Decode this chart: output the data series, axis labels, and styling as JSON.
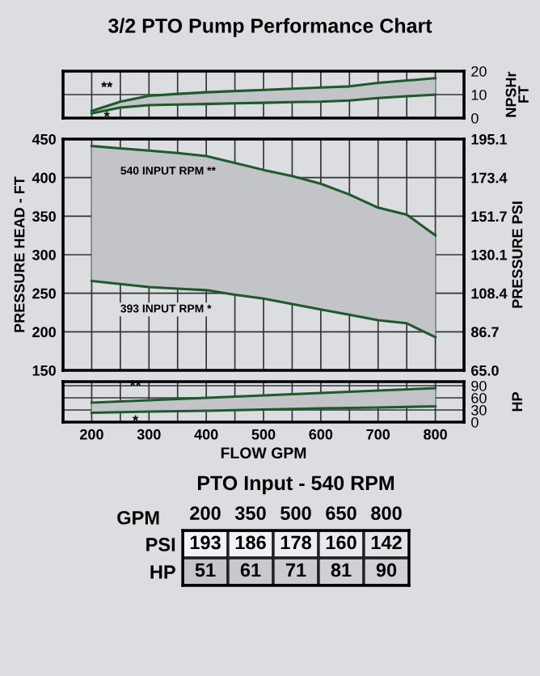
{
  "chart_data": [
    {
      "type": "line",
      "title": "3/2 PTO Pump Performance Chart",
      "ylabel": "NPSHr\nFT",
      "x": [
        200,
        250,
        300,
        350,
        400,
        450,
        500,
        550,
        600,
        650,
        700,
        750,
        800
      ],
      "xlim": [
        150,
        850
      ],
      "xticks": [
        200,
        {
          "value": 250,
          "label": null
        },
        300,
        {
          "value": 350,
          "label": null
        },
        400,
        {
          "value": 450,
          "label": null
        },
        500,
        {
          "value": 550,
          "label": null
        },
        600,
        {
          "value": 650,
          "label": null
        },
        700,
        {
          "value": 750,
          "label": null
        },
        800
      ],
      "ylim": [
        0,
        20
      ],
      "yticks": [
        0,
        10,
        20
      ],
      "grid": true,
      "tick_labels": "y",
      "series": [
        {
          "name": "**",
          "color": "#1f5a2e",
          "values": [
            3,
            7,
            9.5,
            10.3,
            11,
            11.5,
            12,
            12.5,
            13,
            13.5,
            15,
            16,
            17
          ],
          "lower": [
            2,
            4.5,
            5.5,
            5.8,
            6,
            6.3,
            6.5,
            6.8,
            7,
            7.5,
            8.5,
            9.3,
            10
          ],
          "upper": [
            3,
            7,
            9.5,
            10.3,
            11,
            11.5,
            12,
            12.5,
            13,
            13.5,
            15,
            16,
            17
          ]
        },
        {
          "name": "*",
          "color": "#1f5a2e",
          "values": [
            2,
            4.5,
            5.5,
            5.8,
            6,
            6.3,
            6.5,
            6.8,
            7,
            7.5,
            8.5,
            9.3,
            10
          ]
        }
      ]
    },
    {
      "type": "line",
      "ylabel": "PRESSURE HEAD - FT",
      "y2label": "PRESSURE PSI",
      "x": [
        200,
        250,
        300,
        350,
        400,
        450,
        500,
        550,
        600,
        650,
        700,
        750,
        800
      ],
      "xlim": [
        150,
        850
      ],
      "xticks": [
        200,
        {
          "value": 250,
          "label": null
        },
        300,
        {
          "value": 350,
          "label": null
        },
        400,
        {
          "value": 450,
          "label": null
        },
        500,
        {
          "value": 550,
          "label": null
        },
        600,
        {
          "value": 650,
          "label": null
        },
        700,
        {
          "value": 750,
          "label": null
        },
        800
      ],
      "ylim": [
        150,
        450
      ],
      "yticks": [
        150,
        200,
        250,
        300,
        350,
        400,
        450
      ],
      "y2lim": [
        65.0,
        195.1
      ],
      "y2ticks": [
        {
          "value": 65.0,
          "label": "65.0"
        },
        86.7,
        108.4,
        130.1,
        151.7,
        173.4,
        195.1
      ],
      "grid": true,
      "tick_labels": "y",
      "series": [
        {
          "name": "540 INPUT RPM **",
          "color": "#1f5a2e",
          "values": [
            441,
            438,
            435,
            432,
            428,
            419,
            410,
            402,
            392,
            378,
            361,
            352,
            325
          ],
          "lower": [
            266,
            262,
            258,
            256,
            254,
            248,
            243,
            236,
            229,
            222,
            215,
            211,
            193
          ],
          "upper": [
            441,
            438,
            435,
            432,
            428,
            419,
            410,
            402,
            392,
            378,
            361,
            352,
            325
          ]
        },
        {
          "name": "393 INPUT RPM *",
          "color": "#1f5a2e",
          "values": [
            266,
            262,
            258,
            256,
            254,
            248,
            243,
            236,
            229,
            222,
            215,
            211,
            193
          ]
        }
      ]
    },
    {
      "type": "line",
      "ylabel": "HP",
      "xlabel": "FLOW GPM",
      "x": [
        200,
        300,
        400,
        500,
        600,
        700,
        800
      ],
      "xlim": [
        150,
        850
      ],
      "xticks": [
        200,
        {
          "value": 250,
          "label": null
        },
        300,
        {
          "value": 350,
          "label": null
        },
        400,
        {
          "value": 450,
          "label": null
        },
        500,
        {
          "value": 550,
          "label": null
        },
        600,
        {
          "value": 650,
          "label": null
        },
        700,
        {
          "value": 750,
          "label": null
        },
        800
      ],
      "ylim": [
        0,
        100
      ],
      "yticks": [
        0,
        30,
        60,
        90
      ],
      "grid": true,
      "series": [
        {
          "name": "**",
          "color": "#1f5a2e",
          "values": [
            48,
            54,
            60,
            66,
            72,
            78,
            84
          ],
          "lower": [
            23,
            26,
            28,
            31,
            34,
            36,
            39
          ],
          "upper": [
            48,
            54,
            60,
            66,
            72,
            78,
            84
          ]
        },
        {
          "name": "*",
          "color": "#1f5a2e",
          "values": [
            23,
            26,
            28,
            31,
            34,
            36,
            39
          ]
        }
      ]
    },
    {
      "type": "heatmap",
      "title": "PTO Input - 540 RPM",
      "xlabel": "GPM",
      "categories": [
        "200",
        "350",
        "500",
        "650",
        "800"
      ],
      "y_categories": [
        "PSI",
        "HP"
      ],
      "cells": [
        [
          193,
          186,
          178,
          160,
          142
        ],
        [
          51,
          61,
          71,
          81,
          90
        ]
      ],
      "cell_labels": [
        [
          "193",
          "186",
          "178",
          "160",
          "142"
        ],
        [
          "51",
          "61",
          "71",
          "81",
          "90"
        ]
      ]
    }
  ]
}
